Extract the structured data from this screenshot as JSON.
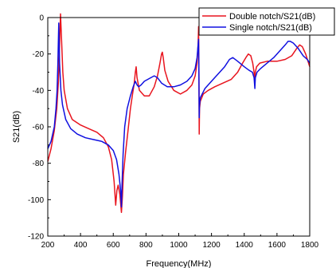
{
  "chart_data": {
    "type": "line",
    "xlabel": "Frequency(MHz)",
    "ylabel": "S21(dB)",
    "xlim": [
      200,
      1800
    ],
    "ylim": [
      -120,
      0
    ],
    "xticks": [
      200,
      400,
      600,
      800,
      1000,
      1200,
      1400,
      1600,
      1800
    ],
    "yticks": [
      0,
      -20,
      -40,
      -60,
      -80,
      -100,
      -120
    ],
    "grid": false,
    "legend_position": "top-right",
    "series": [
      {
        "name": "Double notch/S21(dB)",
        "color": "#e8141e",
        "points": [
          [
            200,
            -79
          ],
          [
            220,
            -72
          ],
          [
            240,
            -62
          ],
          [
            255,
            -50
          ],
          [
            265,
            -35
          ],
          [
            272,
            -15
          ],
          [
            278,
            2
          ],
          [
            284,
            -12
          ],
          [
            292,
            -30
          ],
          [
            300,
            -40
          ],
          [
            320,
            -50
          ],
          [
            350,
            -56
          ],
          [
            400,
            -59
          ],
          [
            450,
            -61
          ],
          [
            500,
            -63
          ],
          [
            540,
            -66
          ],
          [
            570,
            -71
          ],
          [
            590,
            -78
          ],
          [
            605,
            -90
          ],
          [
            615,
            -103
          ],
          [
            622,
            -95
          ],
          [
            630,
            -92
          ],
          [
            640,
            -97
          ],
          [
            650,
            -107
          ],
          [
            656,
            -98
          ],
          [
            662,
            -86
          ],
          [
            675,
            -74
          ],
          [
            690,
            -62
          ],
          [
            705,
            -50
          ],
          [
            718,
            -42
          ],
          [
            728,
            -36
          ],
          [
            735,
            -30
          ],
          [
            740,
            -27
          ],
          [
            745,
            -33
          ],
          [
            760,
            -40
          ],
          [
            790,
            -43
          ],
          [
            820,
            -43
          ],
          [
            850,
            -38
          ],
          [
            870,
            -32
          ],
          [
            885,
            -25
          ],
          [
            895,
            -20
          ],
          [
            900,
            -19
          ],
          [
            905,
            -22
          ],
          [
            915,
            -29
          ],
          [
            935,
            -35
          ],
          [
            970,
            -40
          ],
          [
            1010,
            -42
          ],
          [
            1050,
            -40
          ],
          [
            1080,
            -37
          ],
          [
            1100,
            -32
          ],
          [
            1112,
            -25
          ],
          [
            1118,
            -15
          ],
          [
            1121,
            -5
          ],
          [
            1123,
            -25
          ],
          [
            1125,
            -64
          ],
          [
            1127,
            -50
          ],
          [
            1132,
            -46
          ],
          [
            1150,
            -42
          ],
          [
            1180,
            -40
          ],
          [
            1220,
            -38
          ],
          [
            1270,
            -36
          ],
          [
            1320,
            -34
          ],
          [
            1360,
            -30
          ],
          [
            1390,
            -25
          ],
          [
            1410,
            -22
          ],
          [
            1425,
            -20
          ],
          [
            1440,
            -21
          ],
          [
            1452,
            -25
          ],
          [
            1460,
            -30
          ],
          [
            1465,
            -34
          ],
          [
            1468,
            -30
          ],
          [
            1475,
            -27
          ],
          [
            1495,
            -25
          ],
          [
            1540,
            -24
          ],
          [
            1600,
            -24
          ],
          [
            1650,
            -23
          ],
          [
            1690,
            -21
          ],
          [
            1720,
            -17
          ],
          [
            1738,
            -15
          ],
          [
            1755,
            -16
          ],
          [
            1775,
            -20
          ],
          [
            1800,
            -27
          ]
        ]
      },
      {
        "name": "Single notch/S21(dB)",
        "color": "#1010e0",
        "points": [
          [
            200,
            -72
          ],
          [
            220,
            -68
          ],
          [
            240,
            -60
          ],
          [
            250,
            -50
          ],
          [
            257,
            -40
          ],
          [
            262,
            -25
          ],
          [
            267,
            -3
          ],
          [
            272,
            -25
          ],
          [
            280,
            -40
          ],
          [
            290,
            -48
          ],
          [
            310,
            -56
          ],
          [
            340,
            -61
          ],
          [
            380,
            -64
          ],
          [
            430,
            -66
          ],
          [
            480,
            -67
          ],
          [
            530,
            -68
          ],
          [
            570,
            -70
          ],
          [
            600,
            -73
          ],
          [
            620,
            -78
          ],
          [
            635,
            -86
          ],
          [
            645,
            -95
          ],
          [
            650,
            -104
          ],
          [
            654,
            -90
          ],
          [
            660,
            -75
          ],
          [
            670,
            -60
          ],
          [
            685,
            -50
          ],
          [
            705,
            -43
          ],
          [
            722,
            -38
          ],
          [
            735,
            -35
          ],
          [
            745,
            -37
          ],
          [
            755,
            -38
          ],
          [
            770,
            -37
          ],
          [
            790,
            -35
          ],
          [
            810,
            -34
          ],
          [
            830,
            -33
          ],
          [
            850,
            -32
          ],
          [
            870,
            -33
          ],
          [
            895,
            -36
          ],
          [
            930,
            -38
          ],
          [
            970,
            -38
          ],
          [
            1010,
            -37
          ],
          [
            1050,
            -35
          ],
          [
            1080,
            -32
          ],
          [
            1100,
            -28
          ],
          [
            1112,
            -22
          ],
          [
            1118,
            -15
          ],
          [
            1121,
            -12
          ],
          [
            1123,
            -30
          ],
          [
            1125,
            -55
          ],
          [
            1127,
            -48
          ],
          [
            1132,
            -44
          ],
          [
            1160,
            -39
          ],
          [
            1200,
            -35
          ],
          [
            1240,
            -31
          ],
          [
            1280,
            -27
          ],
          [
            1310,
            -23
          ],
          [
            1330,
            -22
          ],
          [
            1360,
            -24
          ],
          [
            1400,
            -27
          ],
          [
            1430,
            -29
          ],
          [
            1450,
            -30
          ],
          [
            1460,
            -33
          ],
          [
            1465,
            -39
          ],
          [
            1468,
            -33
          ],
          [
            1478,
            -30
          ],
          [
            1500,
            -28
          ],
          [
            1540,
            -25
          ],
          [
            1580,
            -22
          ],
          [
            1620,
            -18
          ],
          [
            1650,
            -15
          ],
          [
            1668,
            -13
          ],
          [
            1680,
            -13
          ],
          [
            1700,
            -14
          ],
          [
            1730,
            -17
          ],
          [
            1760,
            -21
          ],
          [
            1785,
            -23
          ],
          [
            1800,
            -25
          ]
        ]
      }
    ]
  }
}
